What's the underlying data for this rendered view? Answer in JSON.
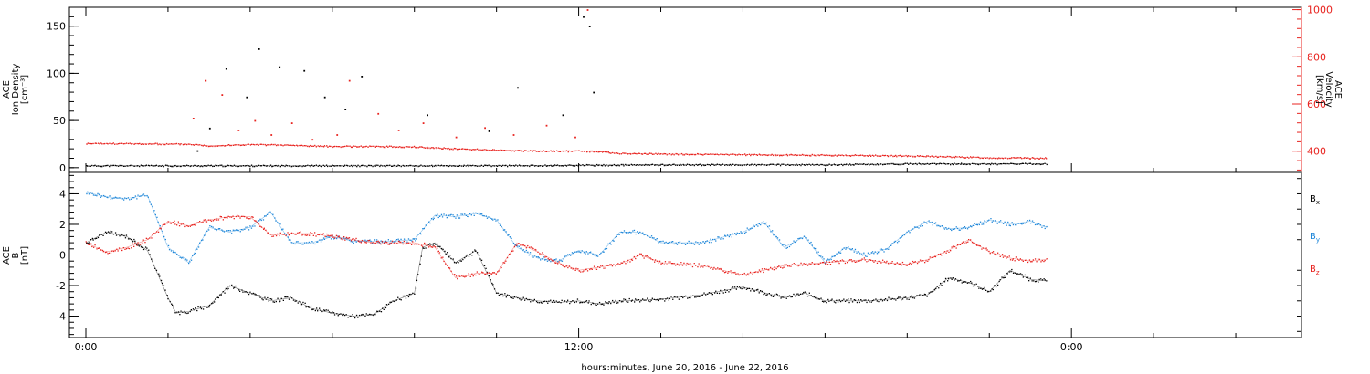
{
  "chart_data": {
    "type": "scatter",
    "xlabel": "hours:minutes, June 20, 2016 - June 22, 2016",
    "x_ticks": [
      "0:00",
      "12:00",
      "0:00"
    ],
    "x_unit": "hours since June 20, 2016 00:00",
    "xlim": [
      -0.4,
      29.6
    ],
    "panels": [
      {
        "ylabel": [
          "ACE",
          "Ion Density",
          "[cm⁻³]"
        ],
        "ylim": [
          -5,
          170
        ],
        "yticks": [
          0,
          50,
          100,
          150
        ],
        "y2label": [
          "ACE",
          "Velocity",
          "[km/s]"
        ],
        "y2lim": [
          310,
          1010
        ],
        "y2ticks": [
          400,
          600,
          800,
          1000
        ],
        "series": [
          {
            "name": "density",
            "color": "#000000",
            "axis": "left",
            "x": [
              0,
              2,
              4,
              6,
              8,
              10,
              12,
              14,
              16,
              18,
              20,
              22,
              23.4
            ],
            "values": [
              2,
              2,
              2,
              2,
              2,
              2,
              2.5,
              3,
              3,
              3,
              4,
              4,
              4
            ],
            "scatter_x": [
              2.7,
              3.0,
              3.4,
              3.9,
              4.2,
              4.7,
              5.3,
              5.8,
              6.3,
              6.7,
              8.3,
              9.8,
              10.5,
              11.6,
              12.1,
              12.25,
              12.35
            ],
            "scatter_y": [
              18,
              42,
              105,
              75,
              126,
              107,
              103,
              75,
              62,
              97,
              56,
              39,
              85,
              56,
              160,
              150,
              80
            ]
          },
          {
            "name": "velocity",
            "color": "#e8231f",
            "axis": "right",
            "x": [
              0,
              1,
              2,
              2.5,
              3,
              4,
              5,
              6,
              7,
              8,
              9,
              10,
              11,
              12,
              12.5,
              13,
              14,
              16,
              18,
              20,
              22,
              23.4
            ],
            "values": [
              432,
              432,
              430,
              430,
              423,
              428,
              425,
              420,
              420,
              418,
              410,
              405,
              400,
              400,
              398,
              390,
              388,
              385,
              383,
              380,
              372,
              370
            ],
            "scatter_x": [
              2.6,
              2.9,
              3.3,
              3.7,
              4.1,
              4.5,
              5.0,
              5.5,
              6.1,
              6.4,
              7.1,
              7.6,
              8.2,
              9.0,
              9.7,
              10.4,
              11.2,
              11.9,
              12.2
            ],
            "scatter_y": [
              540,
              700,
              640,
              490,
              530,
              470,
              520,
              450,
              470,
              700,
              560,
              490,
              520,
              460,
              500,
              470,
              510,
              460,
              1000
            ]
          }
        ]
      },
      {
        "ylabel": [
          "ACE",
          "B",
          "[nT]"
        ],
        "ylim": [
          -5.4,
          5.4
        ],
        "yticks": [
          -4,
          -2,
          0,
          2,
          4
        ],
        "zero_line": true,
        "legend": [
          {
            "label": "B",
            "sub": "x",
            "color": "#000000"
          },
          {
            "label": "B",
            "sub": "y",
            "color": "#1f87d9"
          },
          {
            "label": "B",
            "sub": "z",
            "color": "#e8231f"
          }
        ],
        "series": [
          {
            "name": "Bx",
            "color": "#000000",
            "x": [
              0,
              0.5,
              1,
              1.5,
              2,
              2.2,
              2.5,
              3,
              3.5,
              4,
              4.5,
              5,
              5.5,
              6,
              6.5,
              7,
              7.5,
              8,
              8.2,
              8.5,
              9,
              9.5,
              10,
              10.5,
              11,
              11.5,
              12,
              12.5,
              13,
              14,
              15,
              16,
              17,
              17.5,
              18,
              19,
              20,
              20.5,
              21,
              21.5,
              22,
              22.5,
              23,
              23.4
            ],
            "values": [
              0.8,
              1.5,
              1.2,
              0.3,
              -2.8,
              -3.8,
              -3.7,
              -3.3,
              -2.0,
              -2.5,
              -3.0,
              -2.8,
              -3.5,
              -3.8,
              -4.0,
              -3.9,
              -3.0,
              -2.5,
              0.5,
              0.8,
              -0.5,
              0.3,
              -2.5,
              -2.8,
              -3.0,
              -3.1,
              -3.0,
              -3.2,
              -3.0,
              -2.9,
              -2.6,
              -2.1,
              -2.8,
              -2.5,
              -3.0,
              -3.0,
              -2.8,
              -2.6,
              -1.5,
              -1.8,
              -2.4,
              -1.0,
              -1.6,
              -1.7
            ]
          },
          {
            "name": "By",
            "color": "#1f87d9",
            "x": [
              0,
              0.5,
              1,
              1.5,
              2,
              2.5,
              3,
              3.5,
              4,
              4.5,
              5,
              5.5,
              6,
              6.5,
              7,
              7.5,
              8,
              8.5,
              9,
              9.5,
              10,
              10.5,
              11,
              11.5,
              12,
              12.5,
              13,
              13.5,
              14,
              15,
              16,
              16.5,
              17,
              17.5,
              18,
              18.5,
              19,
              19.5,
              20,
              20.5,
              21,
              21.5,
              22,
              22.5,
              23,
              23.4
            ],
            "values": [
              4.1,
              3.8,
              3.7,
              3.9,
              0.5,
              -0.5,
              1.8,
              1.5,
              1.8,
              2.8,
              0.8,
              0.8,
              1.2,
              0.9,
              0.9,
              0.9,
              1.0,
              2.6,
              2.5,
              2.7,
              2.3,
              0.5,
              -0.2,
              -0.4,
              0.3,
              0.0,
              1.5,
              1.5,
              0.8,
              0.8,
              1.5,
              2.2,
              0.5,
              1.2,
              -0.5,
              0.5,
              0.0,
              0.4,
              1.5,
              2.2,
              1.7,
              1.8,
              2.3,
              2.0,
              2.2,
              1.8
            ]
          },
          {
            "name": "Bz",
            "color": "#e8231f",
            "x": [
              0,
              0.5,
              1,
              1.5,
              2,
              2.5,
              3,
              3.5,
              4,
              4.5,
              5,
              5.5,
              6,
              6.5,
              7,
              7.5,
              8,
              8.5,
              9,
              9.5,
              10,
              10.5,
              11,
              11.5,
              12,
              12.5,
              13,
              13.5,
              14,
              15,
              16,
              17,
              18,
              19,
              19.5,
              20,
              20.5,
              21,
              21.5,
              22,
              22.5,
              23,
              23.4
            ],
            "values": [
              0.8,
              0.2,
              0.5,
              1.0,
              2.2,
              1.9,
              2.3,
              2.5,
              2.5,
              1.3,
              1.4,
              1.4,
              1.2,
              1.0,
              0.8,
              0.8,
              0.8,
              0.5,
              -1.5,
              -1.2,
              -1.2,
              0.8,
              0.2,
              -0.5,
              -1.0,
              -0.8,
              -0.6,
              0.0,
              -0.5,
              -0.7,
              -1.3,
              -0.7,
              -0.5,
              -0.3,
              -0.5,
              -0.6,
              -0.3,
              0.3,
              1.0,
              0.2,
              -0.2,
              -0.4,
              -0.3
            ]
          }
        ]
      }
    ]
  }
}
